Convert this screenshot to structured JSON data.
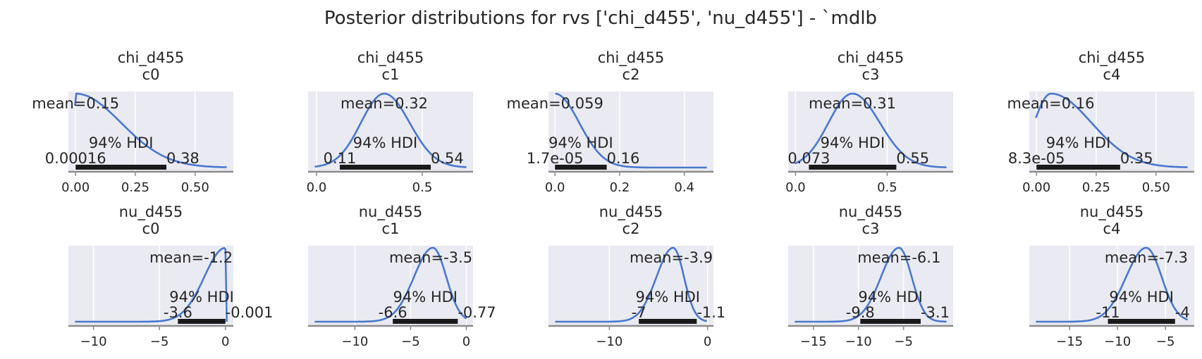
{
  "figure": {
    "suptitle": "Posterior distributions for rvs ['chi_d455', 'nu_d455'] - `mdlb",
    "hdi_label": "94% HDI"
  },
  "colors": {
    "panel_bg": "#eaeaf2",
    "grid": "#ffffff",
    "curve": "#4878cf",
    "hdi_bar": "#1a1a1a",
    "spine": "#8c8c8c"
  },
  "chart_data": [
    {
      "type": "area",
      "title": [
        "chi_d455",
        "c0"
      ],
      "mean_label": "mean=0.15",
      "hdi_low": 0.00016,
      "hdi_high": 0.38,
      "hdi_low_label": "0.00016",
      "hdi_high_label": "0.38",
      "xlim": [
        -0.03,
        0.66
      ],
      "xticks": [
        0,
        0.25,
        0.5
      ],
      "xtick_labels": [
        "0.00",
        "0.25",
        "0.50"
      ],
      "mode": 0.0,
      "sigma_left": 0.004,
      "sigma_right": 0.19
    },
    {
      "type": "area",
      "title": [
        "chi_d455",
        "c1"
      ],
      "mean_label": "mean=0.32",
      "hdi_low": 0.11,
      "hdi_high": 0.54,
      "hdi_low_label": "0.11",
      "hdi_high_label": "0.54",
      "xlim": [
        -0.04,
        0.74
      ],
      "xticks": [
        0,
        0.5
      ],
      "xtick_labels": [
        "0.0",
        "0.5"
      ],
      "mode": 0.32,
      "sigma_left": 0.11,
      "sigma_right": 0.12
    },
    {
      "type": "area",
      "title": [
        "chi_d455",
        "c2"
      ],
      "mean_label": "mean=0.059",
      "hdi_low": 1.7e-05,
      "hdi_high": 0.16,
      "hdi_low_label": "1.7e-05",
      "hdi_high_label": "0.16",
      "xlim": [
        -0.02,
        0.49
      ],
      "xticks": [
        0,
        0.2,
        0.4
      ],
      "xtick_labels": [
        "0.0",
        "0.2",
        "0.4"
      ],
      "mode": 0.0,
      "sigma_left": 0.003,
      "sigma_right": 0.075
    },
    {
      "type": "area",
      "title": [
        "chi_d455",
        "c3"
      ],
      "mean_label": "mean=0.31",
      "hdi_low": 0.073,
      "hdi_high": 0.55,
      "hdi_low_label": "0.073",
      "hdi_high_label": "0.55",
      "xlim": [
        -0.04,
        0.86
      ],
      "xticks": [
        0,
        0.5
      ],
      "xtick_labels": [
        "0.0",
        "0.5"
      ],
      "mode": 0.31,
      "sigma_left": 0.13,
      "sigma_right": 0.15
    },
    {
      "type": "area",
      "title": [
        "chi_d455",
        "c4"
      ],
      "mean_label": "mean=0.16",
      "hdi_low": 8.3e-05,
      "hdi_high": 0.35,
      "hdi_low_label": "8.3e-05",
      "hdi_high_label": "0.35",
      "xlim": [
        -0.03,
        0.66
      ],
      "xticks": [
        0,
        0.25,
        0.5
      ],
      "xtick_labels": [
        "0.00",
        "0.25",
        "0.50"
      ],
      "mode": 0.06,
      "sigma_left": 0.07,
      "sigma_right": 0.17
    },
    {
      "type": "area",
      "title": [
        "nu_d455",
        "c0"
      ],
      "mean_label": "mean=-1.2",
      "hdi_low": -3.6,
      "hdi_high": -0.001,
      "hdi_low_label": "-3.6",
      "hdi_high_label": "-0.001",
      "xlim": [
        -11.9,
        0.6
      ],
      "xticks": [
        -10,
        -5,
        0
      ],
      "xtick_labels": [
        "−10",
        "−5",
        "0"
      ],
      "mode": 0.0,
      "sigma_left": 1.6,
      "sigma_right": 0.02
    },
    {
      "type": "area",
      "title": [
        "nu_d455",
        "c1"
      ],
      "mean_label": "mean=-3.5",
      "hdi_low": -6.6,
      "hdi_high": -0.77,
      "hdi_low_label": "-6.6",
      "hdi_high_label": "-0.77",
      "xlim": [
        -14.2,
        0.6
      ],
      "xticks": [
        -10,
        -5,
        0
      ],
      "xtick_labels": [
        "−10",
        "−5",
        "0"
      ],
      "mode": -3.0,
      "sigma_left": 1.7,
      "sigma_right": 1.2
    },
    {
      "type": "area",
      "title": [
        "nu_d455",
        "c2"
      ],
      "mean_label": "mean=-3.9",
      "hdi_low": -7,
      "hdi_high": -1.1,
      "hdi_low_label": "-7",
      "hdi_high_label": "-1.1",
      "xlim": [
        -16.2,
        0.6
      ],
      "xticks": [
        -10,
        0
      ],
      "xtick_labels": [
        "−10",
        "0"
      ],
      "mode": -3.5,
      "sigma_left": 1.7,
      "sigma_right": 1.1
    },
    {
      "type": "area",
      "title": [
        "nu_d455",
        "c3"
      ],
      "mean_label": "mean=-6.1",
      "hdi_low": -9.8,
      "hdi_high": -3.1,
      "hdi_low_label": "-9.8",
      "hdi_high_label": "-3.1",
      "xlim": [
        -17.8,
        0.5
      ],
      "xticks": [
        -15,
        -10,
        -5
      ],
      "xtick_labels": [
        "−15",
        "−10",
        "−5"
      ],
      "mode": -5.5,
      "sigma_left": 2.0,
      "sigma_right": 1.4
    },
    {
      "type": "area",
      "title": [
        "nu_d455",
        "c4"
      ],
      "mean_label": "mean=-7.3",
      "hdi_low": -11,
      "hdi_high": -4,
      "hdi_low_label": "-11",
      "hdi_high_label": "-4",
      "xlim": [
        -19.2,
        -2.0
      ],
      "xticks": [
        -15,
        -10,
        -5
      ],
      "xtick_labels": [
        "−15",
        "−10",
        "−5"
      ],
      "mode": -7.0,
      "sigma_left": 2.1,
      "sigma_right": 1.6
    }
  ]
}
